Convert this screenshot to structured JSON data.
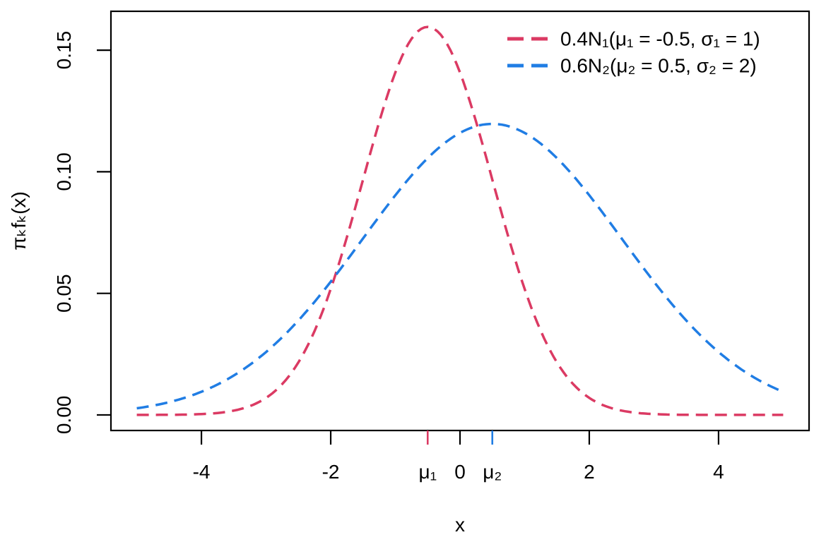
{
  "chart_data": {
    "type": "line",
    "title": "",
    "xlabel": "x",
    "ylabel": "πₖfₖ(x)",
    "xlim": [
      -5.4,
      5.4
    ],
    "ylim": [
      -0.0064,
      0.166
    ],
    "grid": false,
    "legend_position": "top-right-inside",
    "x_ticks": [
      "-4",
      "-2",
      "0",
      "2",
      "4"
    ],
    "y_ticks": [
      "0.00",
      "0.05",
      "0.10",
      "0.15"
    ],
    "x": [
      -5,
      -4.5,
      -4,
      -3.5,
      -3,
      -2.5,
      -2,
      -1.5,
      -1,
      -0.5,
      0,
      0.5,
      1,
      1.5,
      2,
      2.5,
      3,
      3.5,
      4,
      4.5,
      5
    ],
    "series": [
      {
        "name": "0.4N₁(μ₁ = -0.5, σ₁ = 1)",
        "color": "#db3a63",
        "line_style": "dashed",
        "weight": 0.4,
        "mean": -0.5,
        "sd": 1,
        "values": [
          0.0,
          0.0001,
          0.0003,
          0.0018,
          0.007,
          0.0216,
          0.0518,
          0.0968,
          0.1408,
          0.1596,
          0.1408,
          0.0968,
          0.0518,
          0.0216,
          0.007,
          0.0018,
          0.0003,
          0.0001,
          0.0,
          0.0,
          0.0
        ]
      },
      {
        "name": "0.6N₂(μ₂ = 0.5, σ₂ = 2)",
        "color": "#207de4",
        "line_style": "dashed",
        "weight": 0.6,
        "mean": 0.5,
        "sd": 2,
        "values": [
          0.0027,
          0.0053,
          0.0095,
          0.0162,
          0.0259,
          0.0389,
          0.0548,
          0.0726,
          0.0903,
          0.1056,
          0.116,
          0.1197,
          0.116,
          0.1056,
          0.0903,
          0.0726,
          0.0548,
          0.0389,
          0.0259,
          0.0162,
          0.0095
        ]
      }
    ],
    "x_axis_markers": [
      {
        "label": "μ₁",
        "x": -0.5,
        "color": "#db3a63"
      },
      {
        "label": "μ₂",
        "x": 0.5,
        "color": "#207de4"
      }
    ]
  }
}
